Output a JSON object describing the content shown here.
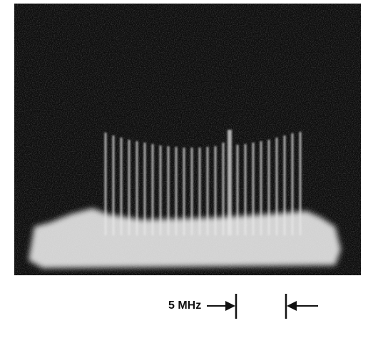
{
  "label": "5 MHz"
}
